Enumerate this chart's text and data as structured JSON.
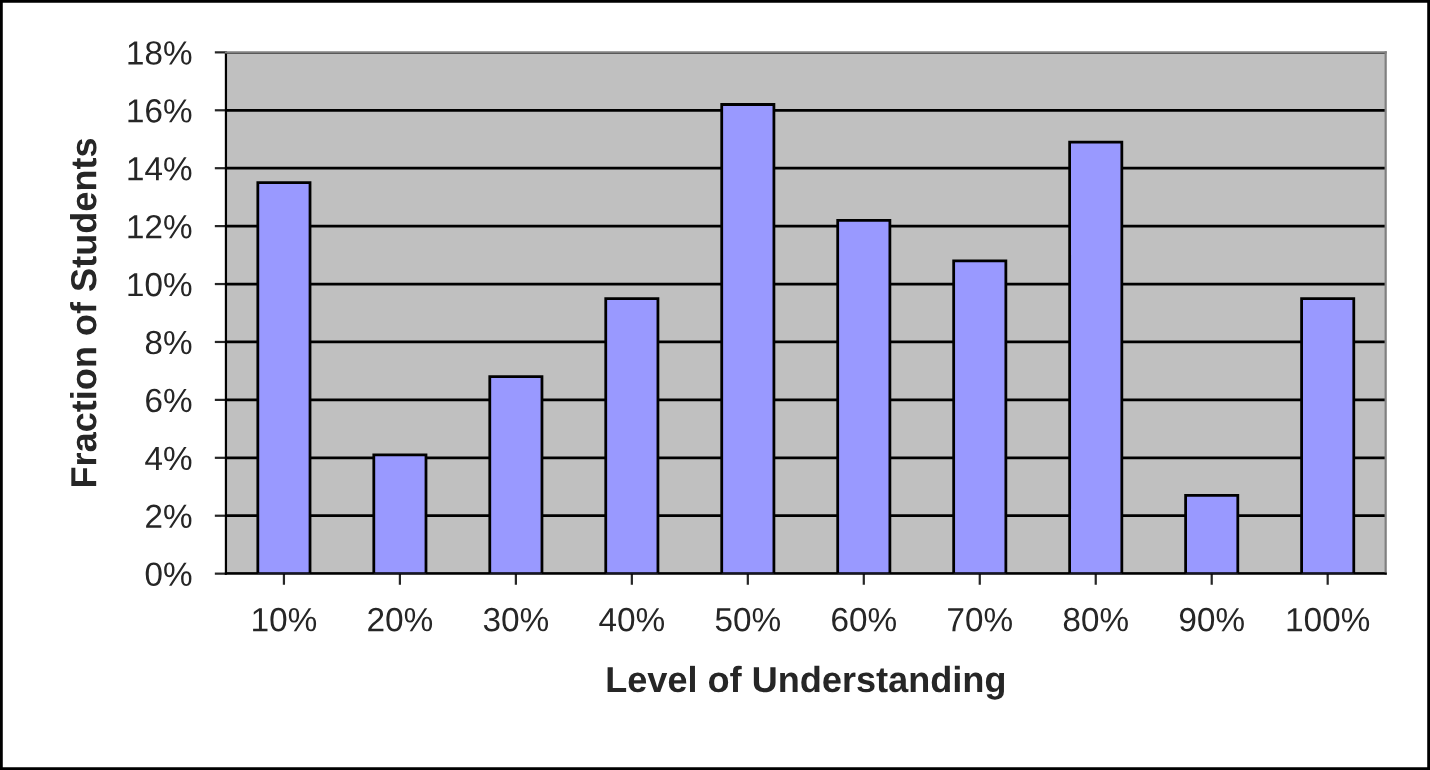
{
  "chart_data": {
    "type": "bar",
    "xlabel": "Level of Understanding",
    "ylabel": "Fraction of Students",
    "categories": [
      "10%",
      "20%",
      "30%",
      "40%",
      "50%",
      "60%",
      "70%",
      "80%",
      "90%",
      "100%"
    ],
    "series": [
      {
        "color": "#9999ff",
        "values": [
          13.5,
          4.1,
          6.8,
          9.5,
          16.2,
          12.2,
          10.8,
          14.9,
          2.7,
          9.5
        ]
      }
    ],
    "ylim": [
      0,
      18
    ],
    "yticks": [
      {
        "value": 0,
        "label": "0%"
      },
      {
        "value": 2,
        "label": "2%"
      },
      {
        "value": 4,
        "label": "4%"
      },
      {
        "value": 6,
        "label": "6%"
      },
      {
        "value": 8,
        "label": "8%"
      },
      {
        "value": 10,
        "label": "10%"
      },
      {
        "value": 12,
        "label": "12%"
      },
      {
        "value": 14,
        "label": "14%"
      },
      {
        "value": 16,
        "label": "16%"
      },
      {
        "value": 18,
        "label": "18%"
      }
    ],
    "grid": "y",
    "legend": false
  }
}
